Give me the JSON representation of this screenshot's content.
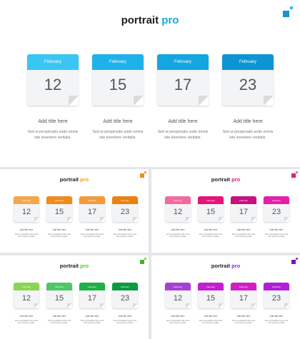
{
  "brand": {
    "word": "portrait",
    "accent_word": "pro"
  },
  "card_month": "February",
  "card_title": "Add title here",
  "card_desc_line1": "Sed ut perspiciatis unde omnis",
  "card_desc_line2": "iste inventore veritatis.",
  "days": [
    "12",
    "15",
    "17",
    "23"
  ],
  "themes": [
    {
      "name": "blue",
      "accent": "#1aa7d6",
      "corner": [
        "#1f8fd0",
        "#2bc0e4"
      ],
      "headers": [
        "#39c6f4",
        "#1fb2ea",
        "#14a6e0",
        "#0c95d4"
      ]
    },
    {
      "name": "orange",
      "accent": "#f39a1e",
      "corner": [
        "#f08a1c",
        "#f4a33a"
      ],
      "headers": [
        "#f6a64a",
        "#f08a1c",
        "#f49a3a",
        "#ea8210"
      ]
    },
    {
      "name": "pink",
      "accent": "#e8127b",
      "corner": [
        "#e01f6e",
        "#ef6aa4"
      ],
      "headers": [
        "#f26aa0",
        "#e8127b",
        "#c4127f",
        "#e61fa8"
      ]
    },
    {
      "name": "green",
      "accent": "#5cc330",
      "corner": [
        "#4cae2e",
        "#8ad554"
      ],
      "headers": [
        "#8ad554",
        "#4fc764",
        "#1fb04a",
        "#0c9b3f"
      ]
    },
    {
      "name": "purple",
      "accent": "#9b1fd0",
      "corner": [
        "#7a12b8",
        "#a840d8"
      ],
      "headers": [
        "#a840d8",
        "#c21fd0",
        "#cf1fc4",
        "#b21fd6"
      ]
    }
  ]
}
